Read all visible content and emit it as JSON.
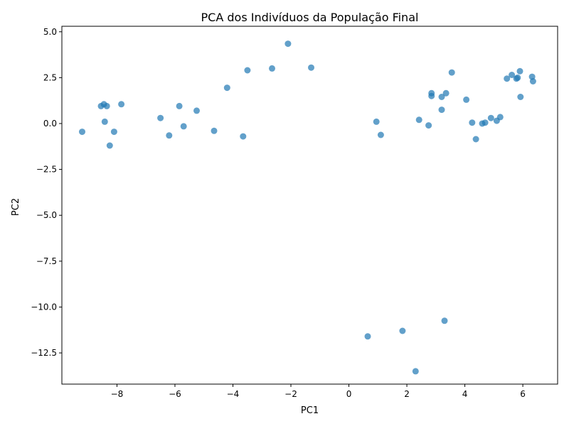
{
  "chart_data": {
    "type": "scatter",
    "title": "PCA dos Indivíduos da População Final",
    "xlabel": "PC1",
    "ylabel": "PC2",
    "xlim": [
      -9.9,
      7.2
    ],
    "ylim": [
      -14.2,
      5.3
    ],
    "xticks": [
      -8,
      -6,
      -4,
      -2,
      0,
      2,
      4,
      6
    ],
    "xtick_labels": [
      "−8",
      "−6",
      "−4",
      "−2",
      "0",
      "2",
      "4",
      "6"
    ],
    "yticks": [
      5.0,
      2.5,
      0.0,
      -2.5,
      -5.0,
      -7.5,
      -10.0,
      -12.5
    ],
    "ytick_labels": [
      "5.0",
      "2.5",
      "0.0",
      "−2.5",
      "−5.0",
      "−7.5",
      "−10.0",
      "−12.5"
    ],
    "grid": false,
    "colors": {
      "marker": "#1f77b4",
      "marker_opacity": 0.7
    },
    "points": [
      {
        "x": -9.2,
        "y": -0.45
      },
      {
        "x": -8.55,
        "y": 0.95
      },
      {
        "x": -8.45,
        "y": 1.05
      },
      {
        "x": -8.35,
        "y": 0.95
      },
      {
        "x": -8.42,
        "y": 0.1
      },
      {
        "x": -8.1,
        "y": -0.45
      },
      {
        "x": -8.25,
        "y": -1.2
      },
      {
        "x": -7.85,
        "y": 1.05
      },
      {
        "x": -6.5,
        "y": 0.3
      },
      {
        "x": -6.2,
        "y": -0.65
      },
      {
        "x": -5.85,
        "y": 0.95
      },
      {
        "x": -5.7,
        "y": -0.15
      },
      {
        "x": -5.25,
        "y": 0.7
      },
      {
        "x": -4.65,
        "y": -0.4
      },
      {
        "x": -4.2,
        "y": 1.95
      },
      {
        "x": -3.65,
        "y": -0.7
      },
      {
        "x": -3.5,
        "y": 2.9
      },
      {
        "x": -2.65,
        "y": 3.0
      },
      {
        "x": -2.1,
        "y": 4.35
      },
      {
        "x": -1.3,
        "y": 3.05
      },
      {
        "x": 0.95,
        "y": 0.1
      },
      {
        "x": 1.1,
        "y": -0.62
      },
      {
        "x": 2.42,
        "y": 0.2
      },
      {
        "x": 2.75,
        "y": -0.1
      },
      {
        "x": 2.85,
        "y": 1.65
      },
      {
        "x": 2.85,
        "y": 1.5
      },
      {
        "x": 3.2,
        "y": 0.75
      },
      {
        "x": 3.2,
        "y": 1.45
      },
      {
        "x": 3.35,
        "y": 1.65
      },
      {
        "x": 3.55,
        "y": 2.78
      },
      {
        "x": 4.05,
        "y": 1.3
      },
      {
        "x": 4.25,
        "y": 0.05
      },
      {
        "x": 4.38,
        "y": -0.85
      },
      {
        "x": 4.6,
        "y": 0.0
      },
      {
        "x": 4.7,
        "y": 0.05
      },
      {
        "x": 4.9,
        "y": 0.3
      },
      {
        "x": 5.1,
        "y": 0.15
      },
      {
        "x": 5.22,
        "y": 0.35
      },
      {
        "x": 5.45,
        "y": 2.45
      },
      {
        "x": 5.62,
        "y": 2.65
      },
      {
        "x": 5.78,
        "y": 2.45
      },
      {
        "x": 5.82,
        "y": 2.5
      },
      {
        "x": 5.9,
        "y": 2.85
      },
      {
        "x": 5.92,
        "y": 1.45
      },
      {
        "x": 6.32,
        "y": 2.55
      },
      {
        "x": 6.35,
        "y": 2.3
      },
      {
        "x": 0.65,
        "y": -11.6
      },
      {
        "x": 1.85,
        "y": -11.3
      },
      {
        "x": 3.3,
        "y": -10.75
      },
      {
        "x": 2.3,
        "y": -13.5
      }
    ]
  }
}
